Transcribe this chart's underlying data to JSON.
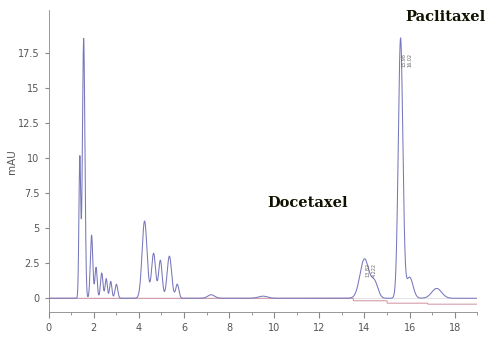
{
  "ylabel": "mAU",
  "xlim": [
    0,
    19
  ],
  "ylim_bottom": -1.0,
  "ylim_top": 20.5,
  "xticks": [
    0,
    2,
    4,
    6,
    8,
    10,
    12,
    14,
    16,
    18
  ],
  "yticks": [
    0,
    2.5,
    5,
    7.5,
    10,
    12.5,
    15,
    17.5
  ],
  "ytick_labels": [
    "0",
    "2.5",
    "5",
    "7.5",
    "10",
    "12.5",
    "15",
    "17.5"
  ],
  "label_paclitaxel": "Paclitaxel",
  "label_docetaxel": "Docetaxel",
  "line_color_blue": "#7777bb",
  "line_color_pink": "#cc8899",
  "background_color": "#ffffff",
  "label_color": "#111100",
  "fontsize_label": 10.5,
  "fontsize_tick": 7,
  "fontsize_ylabel": 7.5
}
